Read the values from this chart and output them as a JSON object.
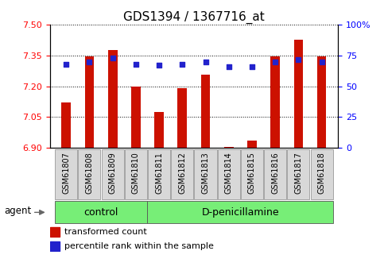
{
  "title": "GDS1394 / 1367716_at",
  "samples": [
    "GSM61807",
    "GSM61808",
    "GSM61809",
    "GSM61810",
    "GSM61811",
    "GSM61812",
    "GSM61813",
    "GSM61814",
    "GSM61815",
    "GSM61816",
    "GSM61817",
    "GSM61818"
  ],
  "bar_values": [
    7.12,
    7.345,
    7.375,
    7.2,
    7.075,
    7.19,
    7.255,
    6.905,
    6.935,
    7.345,
    7.425,
    7.345
  ],
  "percentile_values": [
    68,
    70,
    73,
    68,
    67,
    68,
    70,
    66,
    66,
    70,
    72,
    70
  ],
  "bar_color": "#cc1100",
  "percentile_color": "#2222cc",
  "bar_base": 6.9,
  "ylim_left": [
    6.9,
    7.5
  ],
  "ylim_right": [
    0,
    100
  ],
  "yticks_left": [
    6.9,
    7.05,
    7.2,
    7.35,
    7.5
  ],
  "yticks_right": [
    0,
    25,
    50,
    75,
    100
  ],
  "ytick_labels_right": [
    "0",
    "25",
    "50",
    "75",
    "100%"
  ],
  "n_control": 4,
  "group_label_control": "control",
  "group_label_treatment": "D-penicillamine",
  "agent_label": "agent",
  "legend_bar_label": "transformed count",
  "legend_pct_label": "percentile rank within the sample",
  "bg_color": "#ffffff",
  "sample_bg": "#d8d8d8",
  "group_bg": "#77ee77",
  "bar_width": 0.4
}
